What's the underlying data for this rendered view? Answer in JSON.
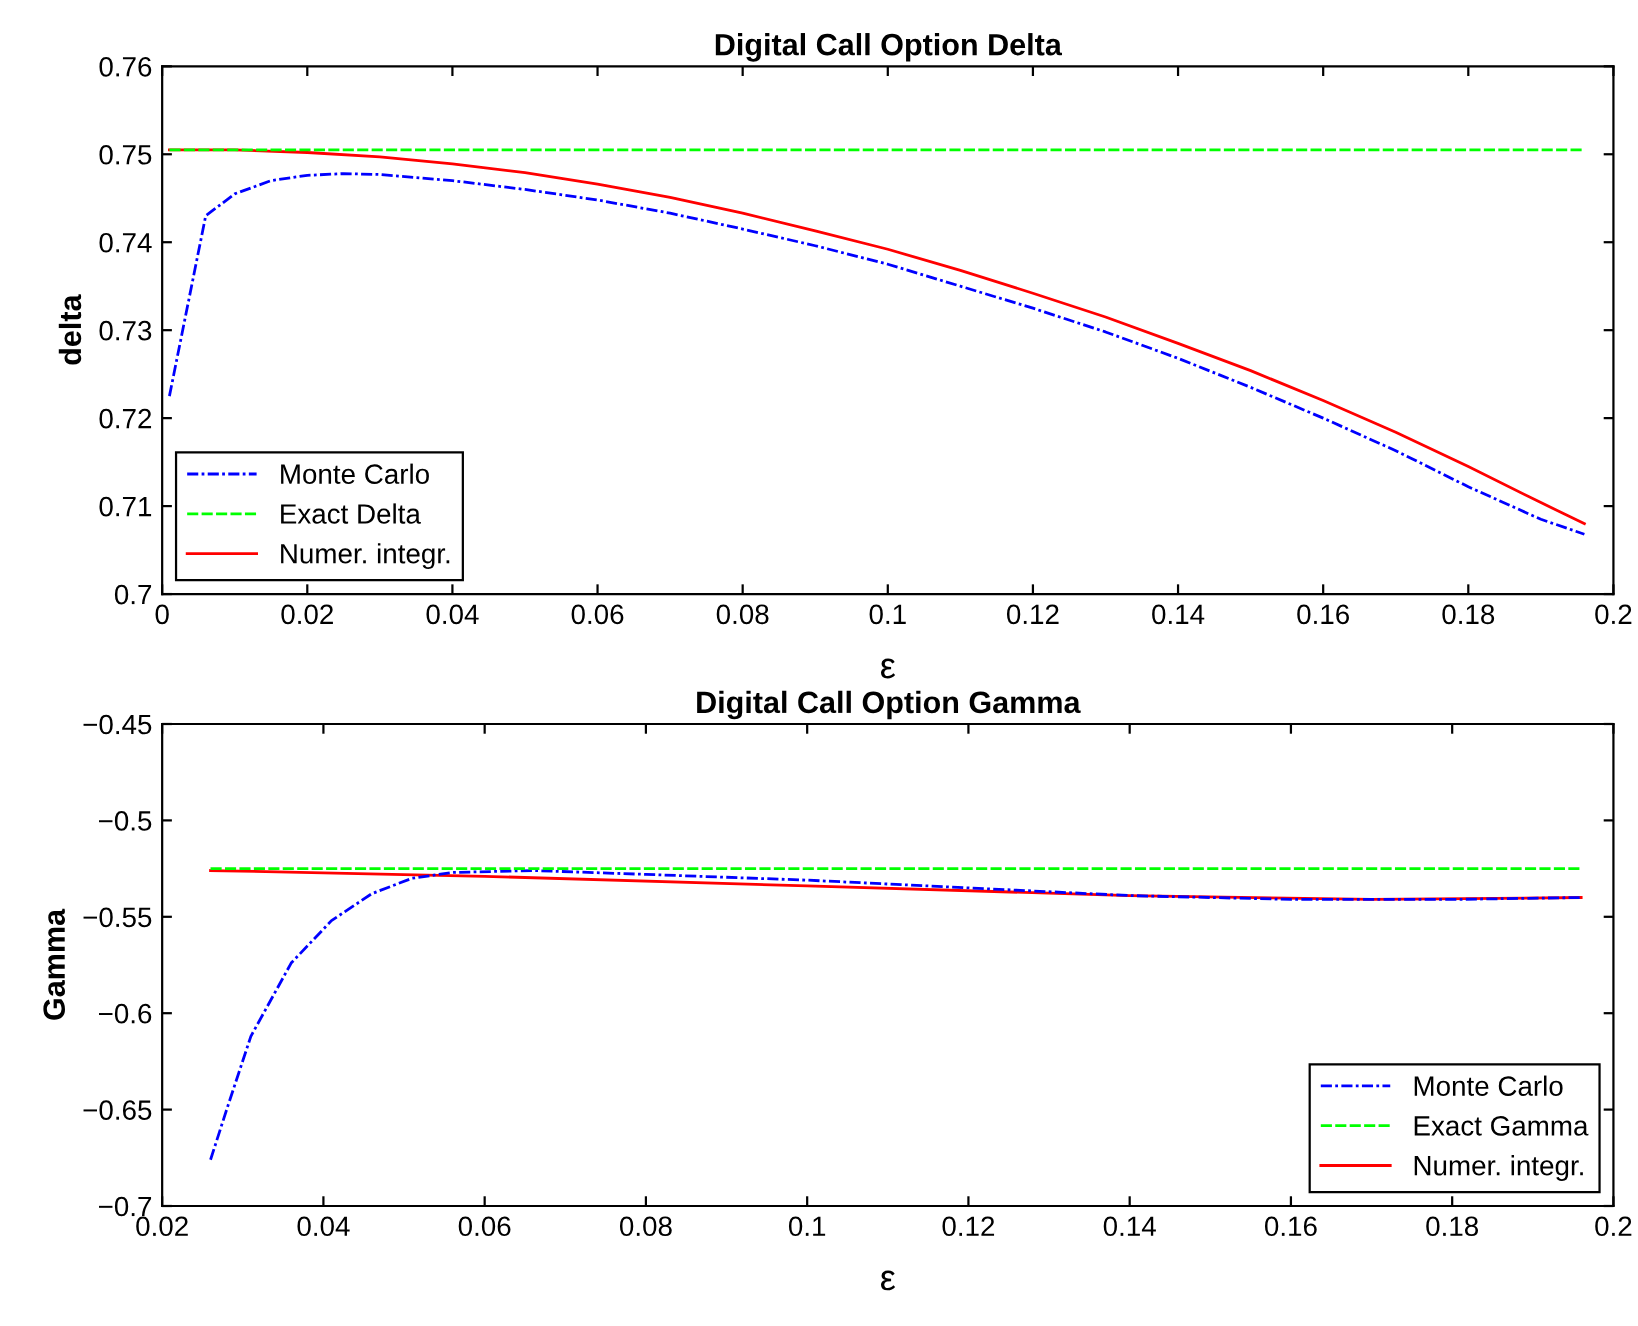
{
  "chart_data": [
    {
      "type": "line",
      "title": "Digital Call Option Delta",
      "xlabel": "ε",
      "ylabel": "delta",
      "xlim": [
        0,
        0.2
      ],
      "xticks": [
        0,
        0.02,
        0.04,
        0.06,
        0.08,
        0.1,
        0.12,
        0.14,
        0.16,
        0.18,
        0.2
      ],
      "ylim": [
        0.7,
        0.76
      ],
      "yticks": [
        0.7,
        0.71,
        0.72,
        0.73,
        0.74,
        0.75,
        0.76
      ],
      "grid": false,
      "legend": "bottom left",
      "series": [
        {
          "name": "Monte Carlo",
          "color": "#0000ff",
          "line_style": "dashdot",
          "x": [
            0.001,
            0.006,
            0.01,
            0.015,
            0.02,
            0.025,
            0.03,
            0.04,
            0.05,
            0.06,
            0.07,
            0.08,
            0.09,
            0.1,
            0.11,
            0.12,
            0.13,
            0.14,
            0.15,
            0.16,
            0.17,
            0.18,
            0.19,
            0.196
          ],
          "values": [
            0.7225,
            0.743,
            0.7455,
            0.747,
            0.7476,
            0.7478,
            0.7477,
            0.747,
            0.746,
            0.7448,
            0.7433,
            0.7415,
            0.7396,
            0.7375,
            0.735,
            0.7325,
            0.7298,
            0.7268,
            0.7235,
            0.72,
            0.7163,
            0.7122,
            0.7085,
            0.7068
          ]
        },
        {
          "name": "Exact Delta",
          "color": "#00ff00",
          "line_style": "dashed",
          "x": [
            0.001,
            0.196
          ],
          "values": [
            0.7505,
            0.7505
          ]
        },
        {
          "name": "Numer. integr.",
          "color": "#ff0000",
          "line_style": "solid",
          "x": [
            0.001,
            0.01,
            0.02,
            0.03,
            0.04,
            0.05,
            0.06,
            0.07,
            0.08,
            0.09,
            0.1,
            0.11,
            0.12,
            0.13,
            0.14,
            0.15,
            0.16,
            0.17,
            0.18,
            0.19,
            0.196
          ],
          "values": [
            0.7505,
            0.7505,
            0.7502,
            0.7497,
            0.7489,
            0.7479,
            0.7466,
            0.7451,
            0.7433,
            0.7413,
            0.7392,
            0.7368,
            0.7342,
            0.7315,
            0.7285,
            0.7254,
            0.722,
            0.7184,
            0.7145,
            0.7104,
            0.708
          ]
        }
      ]
    },
    {
      "type": "line",
      "title": "Digital Call Option Gamma",
      "xlabel": "ε",
      "ylabel": "Gamma",
      "xlim": [
        0.02,
        0.2
      ],
      "xticks": [
        0.02,
        0.04,
        0.06,
        0.08,
        0.1,
        0.12,
        0.14,
        0.16,
        0.18,
        0.2
      ],
      "ylim": [
        -0.7,
        -0.45
      ],
      "yticks": [
        -0.7,
        -0.65,
        -0.6,
        -0.55,
        -0.5,
        -0.45
      ],
      "grid": false,
      "legend": "bottom right",
      "series": [
        {
          "name": "Monte Carlo",
          "color": "#0000ff",
          "line_style": "dashdot",
          "x": [
            0.026,
            0.028,
            0.031,
            0.036,
            0.041,
            0.046,
            0.051,
            0.056,
            0.066,
            0.08,
            0.1,
            0.12,
            0.14,
            0.16,
            0.18,
            0.196
          ],
          "values": [
            -0.676,
            -0.65,
            -0.612,
            -0.574,
            -0.552,
            -0.538,
            -0.53,
            -0.527,
            -0.526,
            -0.528,
            -0.531,
            -0.535,
            -0.539,
            -0.541,
            -0.541,
            -0.54
          ]
        },
        {
          "name": "Exact Gamma",
          "color": "#00ff00",
          "line_style": "dashed",
          "x": [
            0.026,
            0.196
          ],
          "values": [
            -0.525,
            -0.525
          ]
        },
        {
          "name": "Numer. integr.",
          "color": "#ff0000",
          "line_style": "solid",
          "x": [
            0.026,
            0.06,
            0.1,
            0.14,
            0.17,
            0.196
          ],
          "values": [
            -0.526,
            -0.529,
            -0.534,
            -0.539,
            -0.541,
            -0.54
          ]
        }
      ]
    }
  ]
}
